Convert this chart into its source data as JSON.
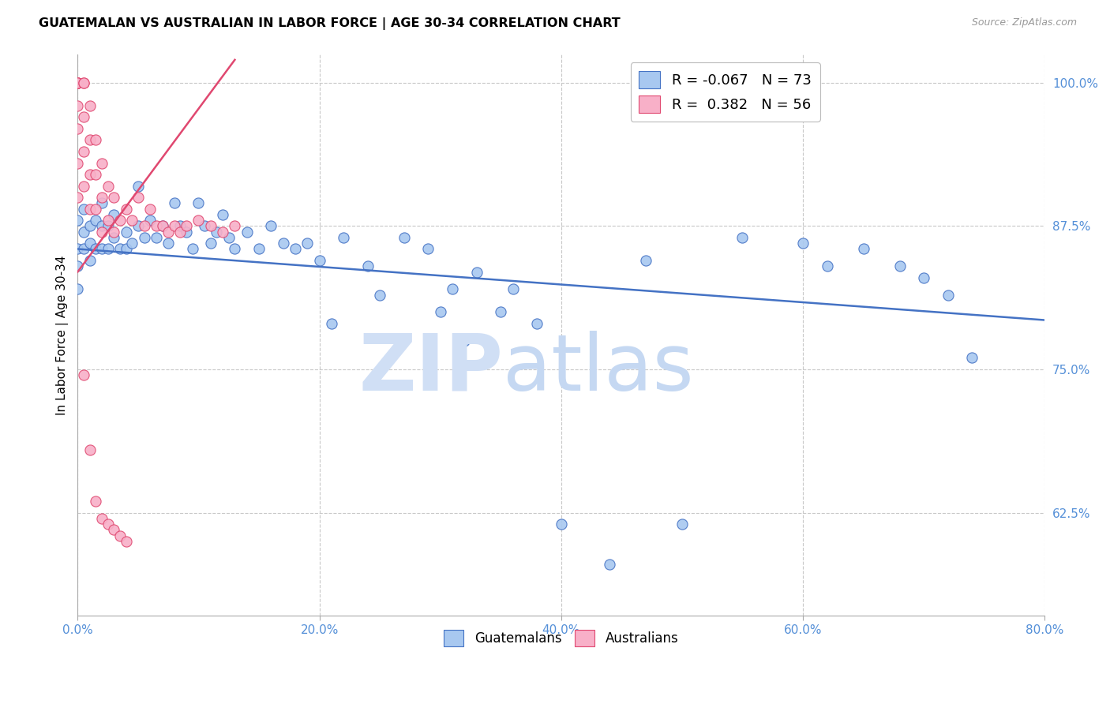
{
  "title": "GUATEMALAN VS AUSTRALIAN IN LABOR FORCE | AGE 30-34 CORRELATION CHART",
  "source": "Source: ZipAtlas.com",
  "ylabel": "In Labor Force | Age 30-34",
  "right_ytick_labels": [
    "100.0%",
    "87.5%",
    "75.0%",
    "62.5%"
  ],
  "right_ytick_values": [
    1.0,
    0.875,
    0.75,
    0.625
  ],
  "xlim": [
    0.0,
    0.8
  ],
  "ylim": [
    0.535,
    1.025
  ],
  "xticklabels": [
    "0.0%",
    "20.0%",
    "40.0%",
    "60.0%",
    "80.0%"
  ],
  "xtick_values": [
    0.0,
    0.2,
    0.4,
    0.6,
    0.8
  ],
  "blue_R": -0.067,
  "blue_N": 73,
  "pink_R": 0.382,
  "pink_N": 56,
  "blue_color": "#A8C8F0",
  "pink_color": "#F8B0C8",
  "blue_line_color": "#4472C4",
  "pink_line_color": "#E04870",
  "watermark_color": "#D0DFF5",
  "blue_trend_x": [
    0.0,
    0.8
  ],
  "blue_trend_y": [
    0.855,
    0.793
  ],
  "pink_trend_x": [
    0.0,
    0.13
  ],
  "pink_trend_y": [
    0.835,
    1.02
  ],
  "blue_scatter_x": [
    0.0,
    0.0,
    0.0,
    0.0,
    0.005,
    0.005,
    0.005,
    0.01,
    0.01,
    0.01,
    0.015,
    0.015,
    0.02,
    0.02,
    0.02,
    0.025,
    0.025,
    0.03,
    0.03,
    0.035,
    0.04,
    0.04,
    0.045,
    0.05,
    0.05,
    0.055,
    0.06,
    0.065,
    0.07,
    0.075,
    0.08,
    0.085,
    0.09,
    0.095,
    0.1,
    0.105,
    0.11,
    0.115,
    0.12,
    0.125,
    0.13,
    0.14,
    0.15,
    0.16,
    0.17,
    0.18,
    0.19,
    0.2,
    0.21,
    0.22,
    0.24,
    0.25,
    0.27,
    0.29,
    0.3,
    0.31,
    0.32,
    0.33,
    0.35,
    0.36,
    0.38,
    0.4,
    0.44,
    0.47,
    0.5,
    0.55,
    0.6,
    0.62,
    0.65,
    0.68,
    0.7,
    0.72,
    0.74
  ],
  "blue_scatter_y": [
    0.88,
    0.855,
    0.84,
    0.82,
    0.89,
    0.87,
    0.855,
    0.875,
    0.86,
    0.845,
    0.88,
    0.855,
    0.895,
    0.875,
    0.855,
    0.875,
    0.855,
    0.885,
    0.865,
    0.855,
    0.87,
    0.855,
    0.86,
    0.91,
    0.875,
    0.865,
    0.88,
    0.865,
    0.875,
    0.86,
    0.895,
    0.875,
    0.87,
    0.855,
    0.895,
    0.875,
    0.86,
    0.87,
    0.885,
    0.865,
    0.855,
    0.87,
    0.855,
    0.875,
    0.86,
    0.855,
    0.86,
    0.845,
    0.79,
    0.865,
    0.84,
    0.815,
    0.865,
    0.855,
    0.8,
    0.82,
    0.775,
    0.835,
    0.8,
    0.82,
    0.79,
    0.615,
    0.58,
    0.845,
    0.615,
    0.865,
    0.86,
    0.84,
    0.855,
    0.84,
    0.83,
    0.815,
    0.76
  ],
  "pink_scatter_x": [
    0.0,
    0.0,
    0.0,
    0.0,
    0.0,
    0.0,
    0.0,
    0.0,
    0.0,
    0.0,
    0.0,
    0.0,
    0.0,
    0.005,
    0.005,
    0.005,
    0.005,
    0.005,
    0.01,
    0.01,
    0.01,
    0.01,
    0.015,
    0.015,
    0.015,
    0.02,
    0.02,
    0.02,
    0.025,
    0.025,
    0.03,
    0.03,
    0.035,
    0.04,
    0.045,
    0.05,
    0.055,
    0.06,
    0.065,
    0.07,
    0.075,
    0.08,
    0.085,
    0.09,
    0.1,
    0.11,
    0.12,
    0.13,
    0.005,
    0.01,
    0.015,
    0.02,
    0.025,
    0.03,
    0.035,
    0.04
  ],
  "pink_scatter_y": [
    1.0,
    1.0,
    1.0,
    1.0,
    1.0,
    1.0,
    1.0,
    1.0,
    1.0,
    0.98,
    0.96,
    0.93,
    0.9,
    1.0,
    1.0,
    0.97,
    0.94,
    0.91,
    0.98,
    0.95,
    0.92,
    0.89,
    0.95,
    0.92,
    0.89,
    0.93,
    0.9,
    0.87,
    0.91,
    0.88,
    0.9,
    0.87,
    0.88,
    0.89,
    0.88,
    0.9,
    0.875,
    0.89,
    0.875,
    0.875,
    0.87,
    0.875,
    0.87,
    0.875,
    0.88,
    0.875,
    0.87,
    0.875,
    0.745,
    0.68,
    0.635,
    0.62,
    0.615,
    0.61,
    0.605,
    0.6
  ]
}
